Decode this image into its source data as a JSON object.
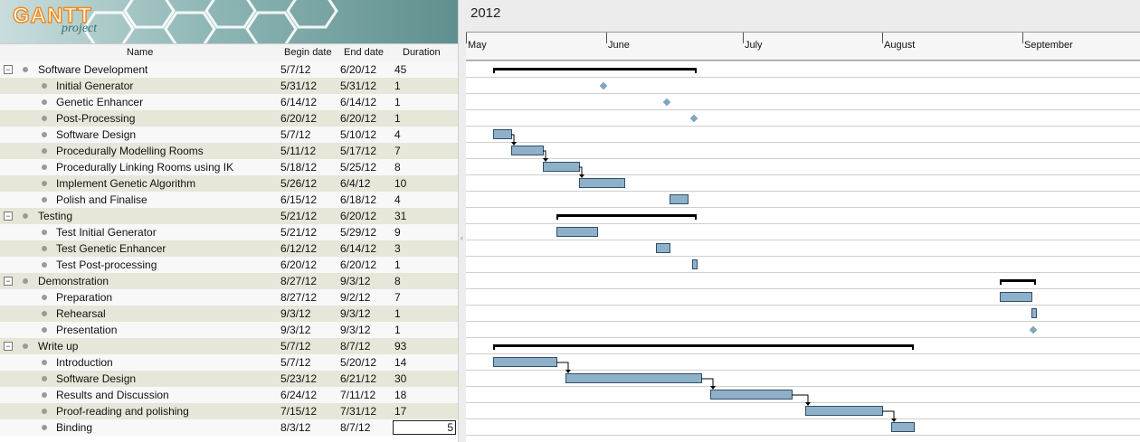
{
  "app": {
    "logo_text": "GANTT",
    "logo_sub": "project"
  },
  "table": {
    "headers": {
      "name": "Name",
      "begin": "Begin date",
      "end": "End date",
      "duration": "Duration"
    },
    "rows": [
      {
        "name": "Software Development",
        "begin": "5/7/12",
        "end": "6/20/12",
        "duration": "45",
        "group": true
      },
      {
        "name": "Initial Generator",
        "begin": "5/31/12",
        "end": "5/31/12",
        "duration": "1"
      },
      {
        "name": "Genetic Enhancer",
        "begin": "6/14/12",
        "end": "6/14/12",
        "duration": "1"
      },
      {
        "name": "Post-Processing",
        "begin": "6/20/12",
        "end": "6/20/12",
        "duration": "1"
      },
      {
        "name": "Software Design",
        "begin": "5/7/12",
        "end": "5/10/12",
        "duration": "4"
      },
      {
        "name": "Procedurally Modelling Rooms",
        "begin": "5/11/12",
        "end": "5/17/12",
        "duration": "7"
      },
      {
        "name": "Procedurally Linking Rooms using IK",
        "begin": "5/18/12",
        "end": "5/25/12",
        "duration": "8"
      },
      {
        "name": "Implement Genetic Algorithm",
        "begin": "5/26/12",
        "end": "6/4/12",
        "duration": "10"
      },
      {
        "name": "Polish and Finalise",
        "begin": "6/15/12",
        "end": "6/18/12",
        "duration": "4"
      },
      {
        "name": "Testing",
        "begin": "5/21/12",
        "end": "6/20/12",
        "duration": "31",
        "group": true
      },
      {
        "name": "Test Initial Generator",
        "begin": "5/21/12",
        "end": "5/29/12",
        "duration": "9"
      },
      {
        "name": "Test Genetic Enhancer",
        "begin": "6/12/12",
        "end": "6/14/12",
        "duration": "3"
      },
      {
        "name": "Test Post-processing",
        "begin": "6/20/12",
        "end": "6/20/12",
        "duration": "1"
      },
      {
        "name": "Demonstration",
        "begin": "8/27/12",
        "end": "9/3/12",
        "duration": "8",
        "group": true
      },
      {
        "name": "Preparation",
        "begin": "8/27/12",
        "end": "9/2/12",
        "duration": "7"
      },
      {
        "name": "Rehearsal",
        "begin": "9/3/12",
        "end": "9/3/12",
        "duration": "1"
      },
      {
        "name": "Presentation",
        "begin": "9/3/12",
        "end": "9/3/12",
        "duration": "1"
      },
      {
        "name": "Write up",
        "begin": "5/7/12",
        "end": "8/7/12",
        "duration": "93",
        "group": true
      },
      {
        "name": "Introduction",
        "begin": "5/7/12",
        "end": "5/20/12",
        "duration": "14"
      },
      {
        "name": "Software Design",
        "begin": "5/23/12",
        "end": "6/21/12",
        "duration": "30"
      },
      {
        "name": "Results and Discussion",
        "begin": "6/24/12",
        "end": "7/11/12",
        "duration": "18"
      },
      {
        "name": "Proof-reading and polishing",
        "begin": "7/15/12",
        "end": "7/31/12",
        "duration": "17"
      },
      {
        "name": "Binding",
        "begin": "8/3/12",
        "end": "8/7/12",
        "duration": "5",
        "editing": true
      }
    ]
  },
  "chart": {
    "year": "2012",
    "months": [
      "May",
      "June",
      "July",
      "August",
      "September"
    ],
    "colors": {
      "bar": "#8fb0c9",
      "bar_border": "#2f4f6a",
      "summary": "#000000",
      "milestone": "#7fa6c2"
    }
  },
  "chart_data": {
    "type": "gantt",
    "origin": "2012-05-01",
    "tasks": [
      {
        "row": 0,
        "kind": "summary",
        "start": "2012-05-07",
        "end": "2012-06-20"
      },
      {
        "row": 1,
        "kind": "milestone",
        "start": "2012-05-31"
      },
      {
        "row": 2,
        "kind": "milestone",
        "start": "2012-06-14"
      },
      {
        "row": 3,
        "kind": "milestone",
        "start": "2012-06-20"
      },
      {
        "row": 4,
        "kind": "task",
        "start": "2012-05-07",
        "end": "2012-05-10"
      },
      {
        "row": 5,
        "kind": "task",
        "start": "2012-05-11",
        "end": "2012-05-17"
      },
      {
        "row": 6,
        "kind": "task",
        "start": "2012-05-18",
        "end": "2012-05-25"
      },
      {
        "row": 7,
        "kind": "task",
        "start": "2012-05-26",
        "end": "2012-06-04"
      },
      {
        "row": 8,
        "kind": "task",
        "start": "2012-06-15",
        "end": "2012-06-18"
      },
      {
        "row": 9,
        "kind": "summary",
        "start": "2012-05-21",
        "end": "2012-06-20"
      },
      {
        "row": 10,
        "kind": "task",
        "start": "2012-05-21",
        "end": "2012-05-29"
      },
      {
        "row": 11,
        "kind": "task",
        "start": "2012-06-12",
        "end": "2012-06-14"
      },
      {
        "row": 12,
        "kind": "task",
        "start": "2012-06-20",
        "end": "2012-06-20"
      },
      {
        "row": 13,
        "kind": "summary",
        "start": "2012-08-27",
        "end": "2012-09-03"
      },
      {
        "row": 14,
        "kind": "task",
        "start": "2012-08-27",
        "end": "2012-09-02"
      },
      {
        "row": 15,
        "kind": "task",
        "start": "2012-09-03",
        "end": "2012-09-03"
      },
      {
        "row": 16,
        "kind": "milestone",
        "start": "2012-09-03"
      },
      {
        "row": 17,
        "kind": "summary",
        "start": "2012-05-07",
        "end": "2012-08-07"
      },
      {
        "row": 18,
        "kind": "task",
        "start": "2012-05-07",
        "end": "2012-05-20"
      },
      {
        "row": 19,
        "kind": "task",
        "start": "2012-05-23",
        "end": "2012-06-21"
      },
      {
        "row": 20,
        "kind": "task",
        "start": "2012-06-24",
        "end": "2012-07-11"
      },
      {
        "row": 21,
        "kind": "task",
        "start": "2012-07-15",
        "end": "2012-07-31"
      },
      {
        "row": 22,
        "kind": "task",
        "start": "2012-08-03",
        "end": "2012-08-07"
      }
    ],
    "dependencies": [
      [
        4,
        5
      ],
      [
        5,
        6
      ],
      [
        6,
        7
      ],
      [
        18,
        19
      ],
      [
        19,
        20
      ],
      [
        20,
        21
      ],
      [
        21,
        22
      ]
    ]
  }
}
